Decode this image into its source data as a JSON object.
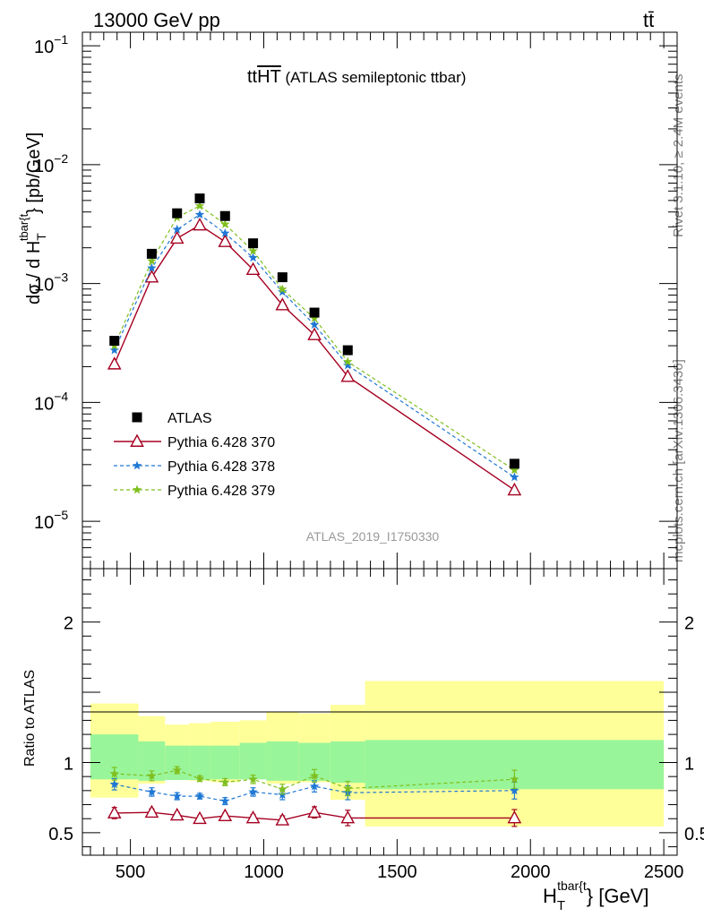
{
  "header": {
    "left": "13000 GeV pp",
    "right": "tt̄"
  },
  "side_labels": {
    "rivet": "Rivet 3.1.10, ≥ 2.4M events",
    "mcplots": "mcplots.cern.ch [arXiv:1306.3436]"
  },
  "analysis_id": "ATLAS_2019_I1750330",
  "title": {
    "main": "tt",
    "overlined": "HT",
    "rest": " (ATLAS semileptonic ttbar)"
  },
  "axes": {
    "y_main": {
      "label_prefix": "dσ / d H",
      "label_sub": "T",
      "label_sup": "tbar{t",
      "label_suffix": "} [pb/GeV]",
      "scale": "log",
      "range": [
        4e-06,
        0.13
      ],
      "ticks": [
        {
          "value": 0.1,
          "mantissa": "10",
          "exponent": "−1"
        },
        {
          "value": 0.01,
          "mantissa": "10",
          "exponent": "−2"
        },
        {
          "value": 0.001,
          "mantissa": "10",
          "exponent": "−3"
        },
        {
          "value": 0.0001,
          "mantissa": "10",
          "exponent": "−4"
        },
        {
          "value": 1e-05,
          "mantissa": "10",
          "exponent": "−5"
        }
      ]
    },
    "y_ratio": {
      "label": "Ratio to ATLAS",
      "range": [
        0.34,
        2.38
      ],
      "ticks": [
        {
          "value": 0.5,
          "label": "0.5"
        },
        {
          "value": 1,
          "label": "1"
        },
        {
          "value": 2,
          "label": "2"
        }
      ]
    },
    "x": {
      "label_prefix": "H",
      "label_sub": "T",
      "label_sup": "tbar{t",
      "label_suffix": "} [GeV]",
      "range": [
        320,
        2550
      ],
      "ticks": [
        {
          "value": 500,
          "label": "500"
        },
        {
          "value": 1000,
          "label": "1000"
        },
        {
          "value": 1500,
          "label": "1500"
        },
        {
          "value": 2000,
          "label": "2000"
        },
        {
          "value": 2500,
          "label": "2500"
        }
      ]
    }
  },
  "legend": {
    "placement": "lower-left",
    "entries": [
      {
        "label": "ATLAS",
        "color": "#000000",
        "marker": "square"
      },
      {
        "label": "Pythia 6.428 370",
        "color": "#a50021",
        "marker": "open-triangle",
        "line": "solid"
      },
      {
        "label": "Pythia 6.428 378",
        "color": "#1f78d4",
        "marker": "star",
        "line": "dashed"
      },
      {
        "label": "Pythia 6.428 379",
        "color": "#7fbf1f",
        "marker": "star",
        "line": "dashed"
      }
    ]
  },
  "colors": {
    "band_inner": "#99f599",
    "band_outer": "#ffff99"
  },
  "chart_data": {
    "type": "scatter",
    "x_bins": [
      [
        350,
        530
      ],
      [
        530,
        630
      ],
      [
        630,
        720
      ],
      [
        720,
        800
      ],
      [
        800,
        910
      ],
      [
        910,
        1010
      ],
      [
        1010,
        1130
      ],
      [
        1130,
        1250
      ],
      [
        1250,
        1380
      ],
      [
        1380,
        2500
      ]
    ],
    "x": [
      440,
      580,
      675,
      760,
      855,
      960,
      1070,
      1190,
      1315,
      1940
    ],
    "data": {
      "name": "ATLAS",
      "values": [
        0.00033,
        0.00178,
        0.0039,
        0.0052,
        0.0037,
        0.00218,
        0.00113,
        0.00057,
        0.000275,
        3.05e-05
      ]
    },
    "series": [
      {
        "name": "Pythia 6.428 370",
        "values": [
          0.00021,
          0.00113,
          0.0024,
          0.0031,
          0.00225,
          0.00131,
          0.00066,
          0.00037,
          0.000165,
          1.83e-05
        ],
        "ratio": [
          0.64,
          0.645,
          0.625,
          0.6,
          0.62,
          0.605,
          0.59,
          0.645,
          0.605,
          0.605
        ],
        "ratio_err": [
          0.04,
          0.025,
          0.02,
          0.02,
          0.02,
          0.025,
          0.03,
          0.04,
          0.055,
          0.06
        ]
      },
      {
        "name": "Pythia 6.428 378",
        "values": [
          0.000275,
          0.00135,
          0.00285,
          0.0038,
          0.00265,
          0.00165,
          0.00085,
          0.00045,
          0.000205,
          2.35e-05
        ],
        "ratio": [
          0.845,
          0.79,
          0.76,
          0.76,
          0.725,
          0.79,
          0.77,
          0.83,
          0.785,
          0.8
        ],
        "ratio_err": [
          0.04,
          0.03,
          0.025,
          0.02,
          0.025,
          0.03,
          0.035,
          0.04,
          0.05,
          0.06
        ]
      },
      {
        "name": "Pythia 6.428 379",
        "values": [
          0.0003,
          0.00155,
          0.0036,
          0.0045,
          0.00315,
          0.00188,
          0.000895,
          0.00051,
          0.00022,
          2.7e-05
        ],
        "ratio": [
          0.92,
          0.905,
          0.945,
          0.885,
          0.86,
          0.88,
          0.81,
          0.905,
          0.815,
          0.88
        ],
        "ratio_err": [
          0.045,
          0.035,
          0.025,
          0.02,
          0.025,
          0.03,
          0.035,
          0.045,
          0.05,
          0.065
        ]
      }
    ],
    "uncertainty_band": {
      "inner": [
        [
          0.88,
          1.2
        ],
        [
          0.87,
          1.15
        ],
        [
          0.875,
          1.12
        ],
        [
          0.875,
          1.12
        ],
        [
          0.88,
          1.12
        ],
        [
          0.88,
          1.14
        ],
        [
          0.87,
          1.15
        ],
        [
          0.87,
          1.14
        ],
        [
          0.855,
          1.15
        ],
        [
          0.81,
          1.16
        ]
      ],
      "outer": [
        [
          0.75,
          1.42
        ],
        [
          0.85,
          1.33
        ],
        [
          0.88,
          1.27
        ],
        [
          0.87,
          1.28
        ],
        [
          0.86,
          1.29
        ],
        [
          0.88,
          1.3
        ],
        [
          0.85,
          1.36
        ],
        [
          0.86,
          1.35
        ],
        [
          0.735,
          1.41
        ],
        [
          0.545,
          1.58
        ]
      ]
    }
  }
}
